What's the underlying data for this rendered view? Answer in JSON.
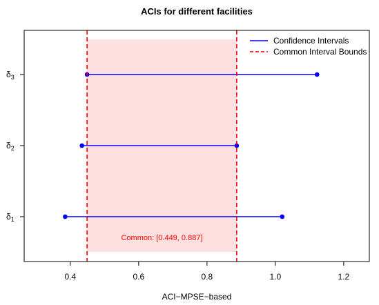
{
  "chart_data": {
    "type": "interval",
    "title": "ACIs for different facilities",
    "xlabel": "ACI−MPSE−based",
    "ylabel": "",
    "xlim": [
      0.265,
      1.275
    ],
    "x_ticks": [
      0.4,
      0.6,
      0.8,
      1.0,
      1.2
    ],
    "x_tick_labels": [
      "0.4",
      "0.6",
      "0.8",
      "1.0",
      "1.2"
    ],
    "grid": false,
    "legend_position": "top-right",
    "intervals": [
      {
        "label_base": "δ",
        "label_sub": "1",
        "lower": 0.385,
        "upper": 1.02
      },
      {
        "label_base": "δ",
        "label_sub": "2",
        "lower": 0.434,
        "upper": 0.887
      },
      {
        "label_base": "δ",
        "label_sub": "3",
        "lower": 0.449,
        "upper": 1.122
      }
    ],
    "common_interval": {
      "lower": 0.449,
      "upper": 0.887
    },
    "annotation": "Common: [0.449, 0.887]",
    "legend": [
      {
        "label": "Confidence Intervals",
        "style": "solid",
        "color": "#0000ff"
      },
      {
        "label": "Common Interval Bounds",
        "style": "dashed",
        "color": "#ff0000"
      }
    ],
    "colors": {
      "interval": "#0000ff",
      "bounds": "#ff0000",
      "shade": "#ffe0e0",
      "annotation": "#ff0000"
    }
  }
}
